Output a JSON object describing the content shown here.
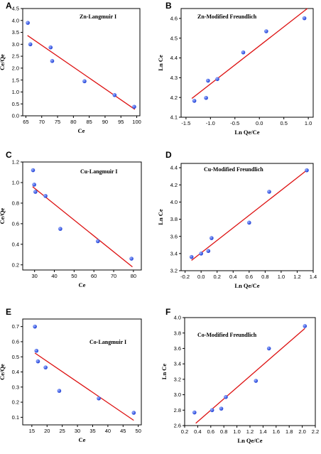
{
  "colors": {
    "point": "#1f3fd6",
    "fit_line": "#dd1111",
    "axis": "#000000"
  },
  "chart_data": [
    {
      "letter": "A",
      "type": "scatter",
      "title": "Zn-Langmuir I",
      "xlabel": "Ce",
      "ylabel": "Ce/Qe",
      "xlim": [
        64,
        101
      ],
      "ylim": [
        0,
        4.5
      ],
      "xticks": [
        65,
        70,
        75,
        80,
        85,
        90,
        95,
        100
      ],
      "yticks": [
        0.0,
        0.5,
        1.0,
        1.5,
        2.0,
        2.5,
        3.0,
        3.5,
        4.0,
        4.5
      ],
      "points": [
        [
          65.6,
          3.9
        ],
        [
          66.4,
          3.0
        ],
        [
          72.8,
          2.87
        ],
        [
          73.3,
          2.3
        ],
        [
          83.5,
          1.45
        ],
        [
          93.0,
          0.87
        ],
        [
          99.2,
          0.38
        ]
      ],
      "fit_line": [
        [
          65.5,
          3.37
        ],
        [
          99.4,
          0.27
        ]
      ]
    },
    {
      "letter": "B",
      "type": "scatter",
      "title": "Zn-Modified Freundlich",
      "xlabel": "Ln Qe/Ce",
      "ylabel": "Ln Ce",
      "xlim": [
        -1.6,
        1.1
      ],
      "ylim": [
        4.1,
        4.65
      ],
      "xticks": [
        -1.5,
        -1.0,
        -0.5,
        0.0,
        0.5,
        1.0
      ],
      "yticks": [
        4.1,
        4.2,
        4.3,
        4.4,
        4.5,
        4.6
      ],
      "points": [
        [
          -1.33,
          4.183
        ],
        [
          -1.09,
          4.198
        ],
        [
          -1.05,
          4.285
        ],
        [
          -0.86,
          4.293
        ],
        [
          -0.33,
          4.428
        ],
        [
          0.14,
          4.535
        ],
        [
          0.92,
          4.601
        ]
      ],
      "fit_line": [
        [
          -1.38,
          4.195
        ],
        [
          0.98,
          4.65
        ]
      ]
    },
    {
      "letter": "C",
      "type": "scatter",
      "title": "Cu-Langmuir I",
      "xlabel": "Ce",
      "ylabel": "Ce/Qe",
      "xlim": [
        24,
        84
      ],
      "ylim": [
        0.15,
        1.2
      ],
      "xticks": [
        30,
        40,
        50,
        60,
        70,
        80
      ],
      "yticks": [
        0.2,
        0.4,
        0.6,
        0.8,
        1.0,
        1.2
      ],
      "points": [
        [
          29.2,
          1.12
        ],
        [
          29.8,
          0.98
        ],
        [
          30.4,
          0.91
        ],
        [
          35.5,
          0.87
        ],
        [
          43.0,
          0.55
        ],
        [
          62.0,
          0.43
        ],
        [
          79.0,
          0.26
        ]
      ],
      "fit_line": [
        [
          29.0,
          0.96
        ],
        [
          79.5,
          0.18
        ]
      ]
    },
    {
      "letter": "D",
      "type": "scatter",
      "title": "Cu-Modified Freundlich",
      "xlabel": "Ln Qe/Ce",
      "ylabel": "Ln Ce",
      "xlim": [
        -0.25,
        1.4
      ],
      "ylim": [
        3.2,
        4.45
      ],
      "xticks": [
        -0.2,
        0.0,
        0.2,
        0.4,
        0.6,
        0.8,
        1.0,
        1.2,
        1.4
      ],
      "yticks": [
        3.2,
        3.4,
        3.6,
        3.8,
        4.0,
        4.2,
        4.4
      ],
      "points": [
        [
          -0.12,
          3.36
        ],
        [
          0.0,
          3.4
        ],
        [
          0.09,
          3.43
        ],
        [
          0.13,
          3.58
        ],
        [
          0.6,
          3.76
        ],
        [
          0.85,
          4.12
        ],
        [
          1.32,
          4.37
        ]
      ],
      "fit_line": [
        [
          -0.12,
          3.32
        ],
        [
          1.32,
          4.37
        ]
      ]
    },
    {
      "letter": "E",
      "type": "scatter",
      "title": "Co-Langmuir I",
      "xlabel": "Ce",
      "ylabel": "Ce/Qe",
      "xlim": [
        12,
        51
      ],
      "ylim": [
        0.05,
        0.75
      ],
      "xticks": [
        15,
        20,
        25,
        30,
        35,
        40,
        45,
        50
      ],
      "yticks": [
        0.1,
        0.2,
        0.3,
        0.4,
        0.5,
        0.6,
        0.7
      ],
      "points": [
        [
          16.0,
          0.7
        ],
        [
          16.5,
          0.54
        ],
        [
          17.0,
          0.47
        ],
        [
          19.5,
          0.43
        ],
        [
          24.0,
          0.275
        ],
        [
          37.0,
          0.225
        ],
        [
          48.5,
          0.13
        ]
      ],
      "fit_line": [
        [
          16.0,
          0.525
        ],
        [
          48.5,
          0.08
        ]
      ]
    },
    {
      "letter": "F",
      "type": "scatter",
      "title": "Co-Modified Freundlich",
      "xlabel": "Ln Qe/Ce",
      "ylabel": "Ln Ce",
      "xlim": [
        0.2,
        2.2
      ],
      "ylim": [
        2.6,
        4.0
      ],
      "xticks": [
        0.2,
        0.4,
        0.6,
        0.8,
        1.0,
        1.2,
        1.4,
        1.6,
        1.8,
        2.0,
        2.2
      ],
      "yticks": [
        2.6,
        2.8,
        3.0,
        3.2,
        3.4,
        3.6,
        3.8,
        4.0
      ],
      "points": [
        [
          0.35,
          2.77
        ],
        [
          0.62,
          2.8
        ],
        [
          0.76,
          2.82
        ],
        [
          0.83,
          2.97
        ],
        [
          1.29,
          3.18
        ],
        [
          1.49,
          3.6
        ],
        [
          2.04,
          3.89
        ]
      ],
      "fit_line": [
        [
          0.37,
          2.63
        ],
        [
          2.04,
          3.86
        ]
      ]
    }
  ]
}
